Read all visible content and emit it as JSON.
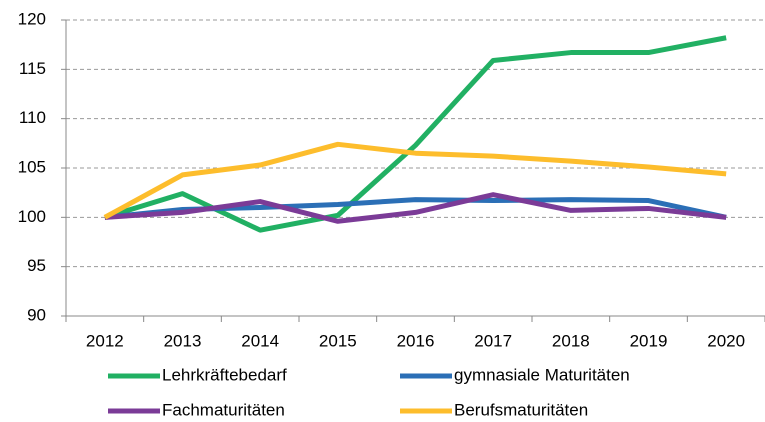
{
  "chart_data": {
    "type": "line",
    "categories": [
      "2012",
      "2013",
      "2014",
      "2015",
      "2016",
      "2017",
      "2018",
      "2019",
      "2020"
    ],
    "series": [
      {
        "name": "Lehrkräftebedarf",
        "color": "#21b063",
        "values": [
          100,
          102.4,
          98.7,
          100.2,
          107.3,
          115.9,
          116.7,
          116.7,
          118.2
        ]
      },
      {
        "name": "gymnasiale Maturitäten",
        "color": "#2b6fb6",
        "values": [
          100,
          100.8,
          101,
          101.3,
          101.8,
          101.7,
          101.8,
          101.7,
          100
        ]
      },
      {
        "name": "Fachmaturitäten",
        "color": "#7b3b97",
        "values": [
          100,
          100.5,
          101.6,
          99.6,
          100.5,
          102.3,
          100.7,
          100.9,
          100
        ]
      },
      {
        "name": "Berufsmaturitäten",
        "color": "#fdbd2c",
        "values": [
          100,
          104.3,
          105.3,
          107.4,
          106.5,
          106.2,
          105.7,
          105.1,
          104.4
        ]
      }
    ],
    "ylim": [
      90,
      120
    ],
    "yticks": [
      90,
      95,
      100,
      105,
      110,
      115,
      120
    ],
    "grid": true
  }
}
